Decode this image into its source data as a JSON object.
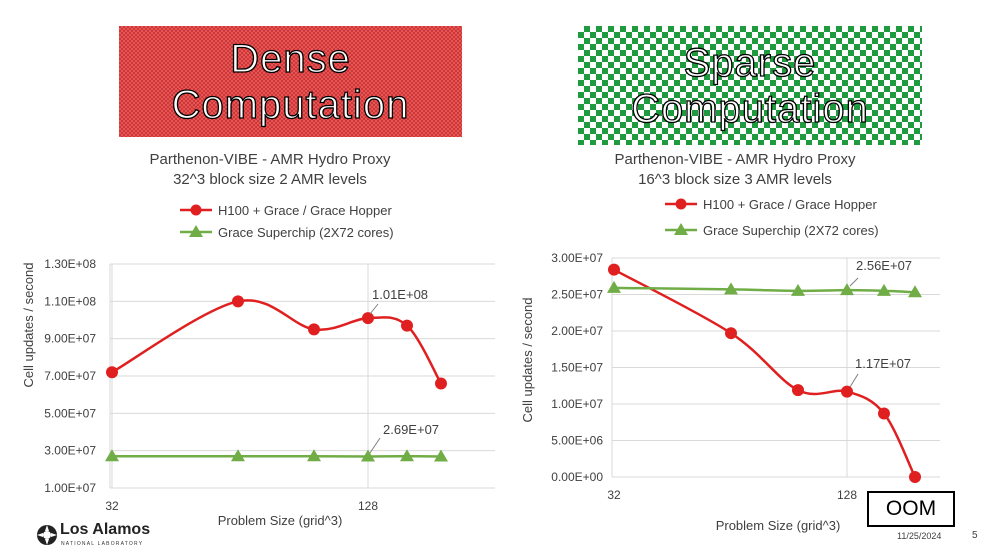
{
  "banners": {
    "dense": [
      "Dense",
      "Computation"
    ],
    "sparse": [
      "Sparse",
      "Computation"
    ]
  },
  "colors": {
    "h100": "#e02020",
    "grace": "#70ad47",
    "grid": "#d9d9d9",
    "dense_banner": "#d63434",
    "sparse_banner": "#1f9a3e"
  },
  "footer": {
    "date": "11/25/2024",
    "page": "5",
    "logo_name": "Los Alamos",
    "logo_sub": "NATIONAL LABORATORY"
  },
  "chart_data": [
    {
      "type": "line",
      "title": "Parthenon-VIBE - AMR Hydro Proxy",
      "subtitle": "32^3 block size 2 AMR levels",
      "xlabel": "Problem Size  (grid^3)",
      "ylabel": "Cell updates / second",
      "x_ticks": [
        "32",
        "128"
      ],
      "y_ticks": [
        "1.00E+07",
        "3.00E+07",
        "5.00E+07",
        "7.00E+07",
        "9.00E+07",
        "1.10E+08",
        "1.30E+08"
      ],
      "ylim": [
        10000000,
        130000000
      ],
      "grid": true,
      "legend_position": "top",
      "series": [
        {
          "name": "H100 + Grace / Grace Hopper",
          "marker": "circle",
          "x": [
            32,
            80,
            112,
            128,
            144,
            160
          ],
          "values": [
            72000000,
            110000000,
            95000000,
            101000000,
            97000000,
            66000000
          ]
        },
        {
          "name": "Grace Superchip (2X72 cores)",
          "marker": "triangle",
          "x": [
            32,
            80,
            112,
            128,
            144,
            160
          ],
          "values": [
            27000000,
            27000000,
            27000000,
            26900000,
            27000000,
            26900000
          ]
        }
      ],
      "annotations": [
        {
          "text": "1.01E+08",
          "x": 128,
          "y": 101000000
        },
        {
          "text": "2.69E+07",
          "x": 128,
          "y": 26900000
        }
      ]
    },
    {
      "type": "line",
      "title": "Parthenon-VIBE - AMR Hydro Proxy",
      "subtitle": "16^3 block size  3 AMR levels",
      "xlabel": "Problem Size (grid^3)",
      "ylabel": "Cell updates / second",
      "x_ticks": [
        "32",
        "128"
      ],
      "y_ticks": [
        "0.00E+00",
        "5.00E+06",
        "1.00E+07",
        "1.50E+07",
        "2.00E+07",
        "2.50E+07",
        "3.00E+07"
      ],
      "ylim": [
        0,
        30000000
      ],
      "grid": true,
      "legend_position": "top",
      "series": [
        {
          "name": "H100 + Grace / Grace Hopper",
          "marker": "circle",
          "x": [
            32,
            80,
            112,
            128,
            144,
            160
          ],
          "values": [
            28400000,
            19700000,
            11900000,
            11700000,
            8700000,
            0
          ]
        },
        {
          "name": "Grace Superchip (2X72 cores)",
          "marker": "triangle",
          "x": [
            32,
            80,
            112,
            128,
            144,
            160
          ],
          "values": [
            25900000,
            25700000,
            25500000,
            25600000,
            25500000,
            25300000
          ]
        }
      ],
      "annotations": [
        {
          "text": "2.56E+07",
          "x": 128,
          "y": 25600000
        },
        {
          "text": "1.17E+07",
          "x": 128,
          "y": 11700000
        },
        {
          "text": "OOM",
          "boxed": true
        }
      ]
    }
  ]
}
